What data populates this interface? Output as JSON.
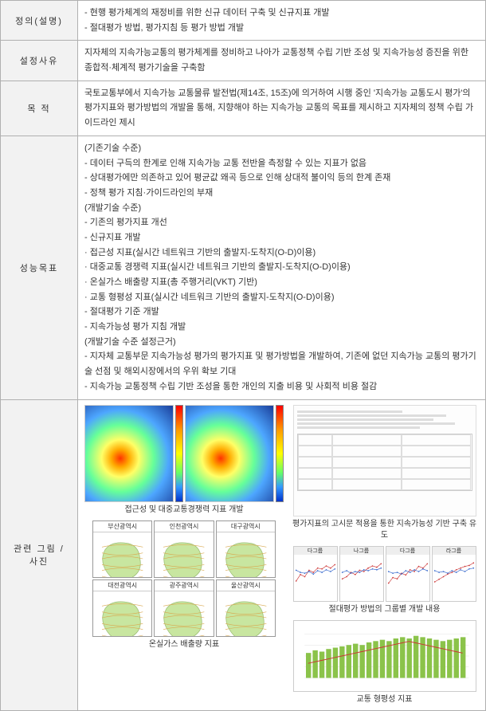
{
  "rows": {
    "definition": {
      "header": "정의(설명)",
      "lines": [
        "- 현행 평가체계의 재정비를 위한 신규 데이터 구축 및 신규지표 개발",
        "- 절대평가 방법, 평가지침 등 평가 방법 개발"
      ]
    },
    "reason": {
      "header": "설정사유",
      "lines": [
        "지자체의 지속가능교통의 평가체계를 정비하고 나아가 교통정책 수립 기반 조성 및 지속가능성 증진을 위한 종합적·체계적 평가기술을 구축함"
      ]
    },
    "purpose": {
      "header": "목    적",
      "lines": [
        "국토교통부에서 지속가능 교통물류 발전법(제14조, 15조)에 의거하여 시행 중인 '지속가능 교통도시 평가'의 평가지표와 평가방법의 개발을 통해, 지향해야 하는 지속가능 교통의 목표를 제시하고 지자체의 정책 수립 가이드라인 제시"
      ]
    },
    "performance": {
      "header": "성능목표",
      "lines": [
        "(기존기술 수준)",
        "- 데이터 구득의 한계로 인해 지속가능 교통 전반을 측정할 수 있는 지표가 없음",
        "- 상대평가에만 의존하고 있어 평균값 왜곡 등으로 인해 상대적 불이익 등의 한계 존재",
        "- 정책 평가 지침·가이드라인의 부재",
        "(개발기술 수준)",
        "- 기존의 평가지표 개선",
        "- 신규지표 개발",
        "  · 접근성 지표(실시간 네트워크 기반의 출발지-도착지(O-D)이용)",
        "  · 대중교통 경쟁력 지표(실시간 네트워크 기반의 출발지-도착지(O-D)이용)",
        "  · 온실가스 배출량 지표(총 주행거리(VKT) 기반)",
        "  · 교통 형평성 지표(실시간 네트워크 기반의 출발지-도착지(O-D)이용)",
        "- 절대평가 기준 개발",
        "- 지속가능성 평가 지침 개발",
        "(개발기술 수준 설정근거)",
        "- 지자체 교통부문 지속가능성 평가의 평가지표 및 평가방법을 개발하여, 기존에 없던 지속가능 교통의 평가기술 선점 및 해외시장에서의 우위 확보 기대",
        "- 지속가능 교통정책 수립 기반 조성을 통한 개인의 지출 비용 및 사회적 비용 절감"
      ]
    },
    "figures": {
      "header": "관련 그림 / 사진",
      "captions": {
        "heatmap": "접근성 및 대중교통경쟁력 지표 개발",
        "citymaps": "온실가스 배출량 지표",
        "document": "평가지표의 고시문 적용을 통한 지속가능성 기반 구축 유도",
        "linecharts": "절대평가 방법의 그룹별 개발 내용",
        "barchart": "교통 형평성 지표"
      },
      "cities": [
        "부산광역시",
        "인천광역시",
        "대구광역시",
        "대전광역시",
        "광주광역시",
        "울산광역시"
      ],
      "linechart_titles": [
        "다그룹",
        "나그룹",
        "다그룹",
        "라그룹"
      ],
      "linechart_data": {
        "series1_color": "#cc3333",
        "series2_color": "#3366cc",
        "x_points": [
          0,
          1,
          2,
          3,
          4,
          5,
          6,
          7,
          8,
          9
        ],
        "charts": [
          {
            "s1": [
              20,
              35,
              30,
              45,
              40,
              50,
              48,
              55,
              50,
              58
            ],
            "s2": [
              45,
              40,
              38,
              42,
              36,
              44,
              40,
              46,
              42,
              48
            ]
          },
          {
            "s1": [
              25,
              30,
              40,
              35,
              45,
              42,
              50,
              55,
              52,
              60
            ],
            "s2": [
              40,
              44,
              38,
              42,
              40,
              46,
              44,
              48,
              46,
              50
            ]
          },
          {
            "s1": [
              15,
              28,
              25,
              38,
              34,
              46,
              42,
              54,
              50,
              60
            ],
            "s2": [
              42,
              38,
              40,
              36,
              44,
              40,
              46,
              42,
              48,
              44
            ]
          },
          {
            "s1": [
              18,
              24,
              30,
              36,
              40,
              46,
              50,
              54,
              56,
              62
            ],
            "s2": [
              44,
              40,
              42,
              38,
              44,
              40,
              46,
              42,
              48,
              50
            ]
          }
        ]
      },
      "barchart_data": {
        "bar_color": "#8bc34a",
        "line_color": "#cc3333",
        "values": [
          38,
          42,
          40,
          44,
          46,
          48,
          50,
          52,
          50,
          54,
          56,
          58,
          56,
          60,
          62,
          60,
          64,
          62,
          60,
          58,
          56,
          58,
          60,
          62
        ],
        "line_values": [
          20,
          22,
          24,
          26,
          28,
          30,
          32,
          34,
          36,
          38,
          40,
          42,
          44,
          46,
          48,
          50,
          48,
          46,
          44,
          42,
          40,
          38,
          36,
          34
        ]
      },
      "city_map_color": "#c8e6a0",
      "city_road_color": "#d9a84e"
    }
  }
}
